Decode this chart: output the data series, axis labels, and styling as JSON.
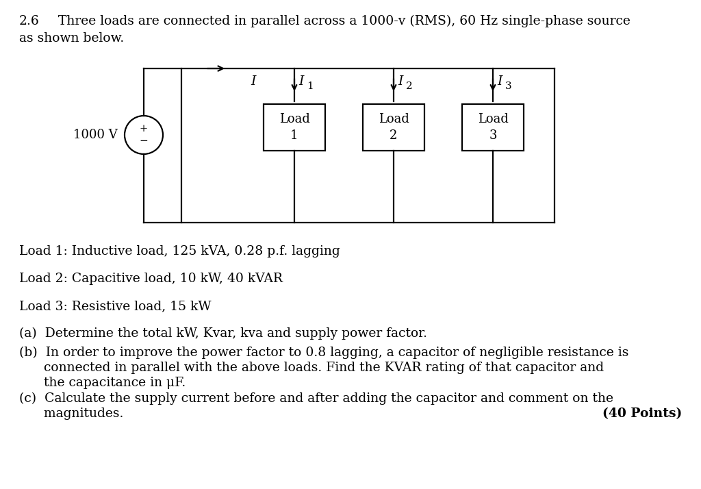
{
  "background_color": "#ffffff",
  "problem_number": "2.6",
  "problem_statement": "Three loads are connected in parallel across a 1000-v (RMS), 60 Hz single-phase source",
  "problem_statement2": "as shown below.",
  "load1_text": "Load 1: Inductive load, 125 kVA, 0.28 p.f. lagging",
  "load2_text": "Load 2: Capacitive load, 10 kW, 40 kVAR",
  "load3_text": "Load 3: Resistive load, 15 kW",
  "part_a": "(a)  Determine the total kW, Kvar, kva and supply power factor.",
  "part_b1": "(b)  In order to improve the power factor to 0.8 lagging, a capacitor of negligible resistance is",
  "part_b2": "      connected in parallel with the above loads. Find the KVAR rating of that capacitor and",
  "part_b3": "      the capacitance in μF.",
  "part_c1": "(c)  Calculate the supply current before and after adding the capacitor and comment on the",
  "part_c2": "      magnitudes.",
  "points": "(40 Points)",
  "voltage_label": "1000 V",
  "current_I": "I",
  "current_I1": "I",
  "current_I1_sub": "1",
  "current_I2": "I",
  "current_I2_sub": "2",
  "current_I3": "I",
  "current_I3_sub": "3",
  "load_label1_line1": "Load",
  "load_label1_line2": "1",
  "load_label2_line1": "Load",
  "load_label2_line2": "2",
  "load_label3_line1": "Load",
  "load_label3_line2": "3",
  "fontsize_body": 13.5,
  "fontsize_circuit": 13.0,
  "fontsize_points": 13.5
}
